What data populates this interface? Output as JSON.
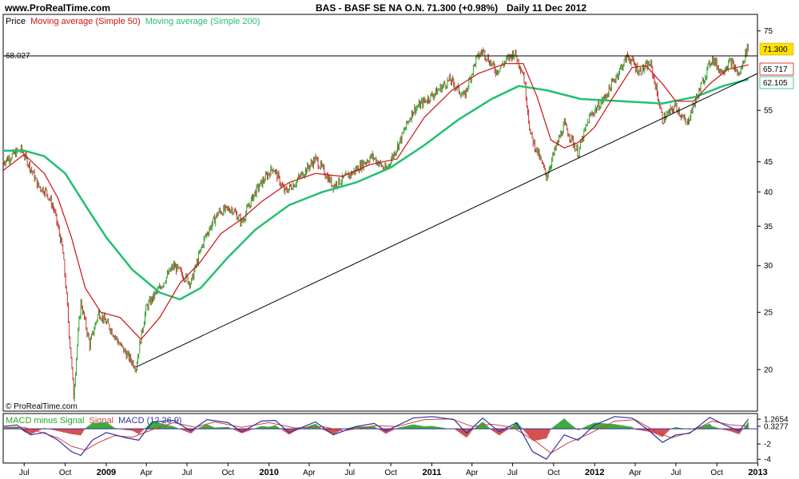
{
  "header": {
    "site": "www.ProRealTime.com",
    "title": "BAS - BASF SE NA O.N.",
    "quote": "71.300 (+0.98%)",
    "period": "Daily  11 Dec 2012"
  },
  "legend": {
    "price": "Price",
    "ma50": "Moving average (Simple 50)",
    "ma200": "Moving average (Simple 200)",
    "macd_hist": "MACD minus Signal",
    "macd_signal": "Signal",
    "macd_line": "MACD (12 26 9)"
  },
  "copyright": "© ProRealTime.com",
  "colors": {
    "price_up": "#2aa32a",
    "price_down": "#c83232",
    "ma50": "#cc1111",
    "ma200": "#22c070",
    "macd": "#3030a0",
    "signal": "#d04040",
    "hist_pos": "#2aa32a",
    "hist_neg": "#d04040",
    "last_price_bg": "#ffe000",
    "trendline": "#000000"
  },
  "chart_data": {
    "type": "line",
    "title": "BAS - BASF SE NA O.N.",
    "y_scale": "log",
    "ylim": [
      17,
      80
    ],
    "y_ticks": [
      75,
      55,
      45,
      40,
      35,
      30,
      25,
      20
    ],
    "x_range": [
      "2008-05-15",
      "2012-12-31"
    ],
    "x_ticks": [
      {
        "label": "Jul",
        "date": "2008-07-01",
        "year": false
      },
      {
        "label": "Oct",
        "date": "2008-10-01",
        "year": false
      },
      {
        "label": "2009",
        "date": "2009-01-01",
        "year": true
      },
      {
        "label": "Apr",
        "date": "2009-04-01",
        "year": false
      },
      {
        "label": "Jul",
        "date": "2009-07-01",
        "year": false
      },
      {
        "label": "Oct",
        "date": "2009-10-01",
        "year": false
      },
      {
        "label": "2010",
        "date": "2010-01-01",
        "year": true
      },
      {
        "label": "Apr",
        "date": "2010-04-01",
        "year": false
      },
      {
        "label": "Jul",
        "date": "2010-07-01",
        "year": false
      },
      {
        "label": "Oct",
        "date": "2010-10-01",
        "year": false
      },
      {
        "label": "2011",
        "date": "2011-01-01",
        "year": true
      },
      {
        "label": "Apr",
        "date": "2011-04-01",
        "year": false
      },
      {
        "label": "Jul",
        "date": "2011-07-01",
        "year": false
      },
      {
        "label": "Oct",
        "date": "2011-10-01",
        "year": false
      },
      {
        "label": "2012",
        "date": "2012-01-01",
        "year": true
      },
      {
        "label": "Apr",
        "date": "2012-04-01",
        "year": false
      },
      {
        "label": "Jul",
        "date": "2012-07-01",
        "year": false
      },
      {
        "label": "Oct",
        "date": "2012-10-01",
        "year": false
      },
      {
        "label": "2013",
        "date": "2013-01-01",
        "year": true
      }
    ],
    "horizontal_line": {
      "value": 68.027,
      "label": "68.027"
    },
    "last_values": {
      "price": "71.300",
      "ma50": "65.717",
      "ma200": "62.105"
    },
    "trendline": {
      "start": {
        "date": "2009-03-09",
        "value": 20.2
      },
      "end": {
        "date": "2012-12-31",
        "value": 63.5
      }
    },
    "price_series": [
      {
        "date": "2008-05-15",
        "value": 45.0
      },
      {
        "date": "2008-06-10",
        "value": 46.5
      },
      {
        "date": "2008-06-25",
        "value": 47.2
      },
      {
        "date": "2008-07-15",
        "value": 44.0
      },
      {
        "date": "2008-08-01",
        "value": 41.0
      },
      {
        "date": "2008-08-20",
        "value": 40.0
      },
      {
        "date": "2008-09-05",
        "value": 37.5
      },
      {
        "date": "2008-09-25",
        "value": 32.0
      },
      {
        "date": "2008-10-10",
        "value": 23.0
      },
      {
        "date": "2008-10-20",
        "value": 18.0
      },
      {
        "date": "2008-11-05",
        "value": 26.0
      },
      {
        "date": "2008-11-25",
        "value": 22.0
      },
      {
        "date": "2008-12-15",
        "value": 25.0
      },
      {
        "date": "2009-01-10",
        "value": 23.5
      },
      {
        "date": "2009-02-01",
        "value": 22.0
      },
      {
        "date": "2009-02-20",
        "value": 21.0
      },
      {
        "date": "2009-03-09",
        "value": 20.2
      },
      {
        "date": "2009-04-01",
        "value": 25.5
      },
      {
        "date": "2009-05-01",
        "value": 27.5
      },
      {
        "date": "2009-06-01",
        "value": 30.0
      },
      {
        "date": "2009-07-10",
        "value": 28.0
      },
      {
        "date": "2009-08-10",
        "value": 33.5
      },
      {
        "date": "2009-09-10",
        "value": 37.0
      },
      {
        "date": "2009-10-10",
        "value": 37.5
      },
      {
        "date": "2009-11-01",
        "value": 35.5
      },
      {
        "date": "2009-12-01",
        "value": 40.0
      },
      {
        "date": "2010-01-10",
        "value": 44.0
      },
      {
        "date": "2010-02-05",
        "value": 40.0
      },
      {
        "date": "2010-03-01",
        "value": 41.5
      },
      {
        "date": "2010-04-15",
        "value": 45.5
      },
      {
        "date": "2010-05-25",
        "value": 41.0
      },
      {
        "date": "2010-07-05",
        "value": 43.0
      },
      {
        "date": "2010-08-20",
        "value": 46.0
      },
      {
        "date": "2010-09-20",
        "value": 43.5
      },
      {
        "date": "2010-10-20",
        "value": 48.5
      },
      {
        "date": "2010-11-20",
        "value": 55.0
      },
      {
        "date": "2011-01-10",
        "value": 59.0
      },
      {
        "date": "2011-02-10",
        "value": 62.0
      },
      {
        "date": "2011-03-15",
        "value": 58.0
      },
      {
        "date": "2011-04-10",
        "value": 67.0
      },
      {
        "date": "2011-04-25",
        "value": 69.5
      },
      {
        "date": "2011-05-25",
        "value": 64.0
      },
      {
        "date": "2011-07-05",
        "value": 69.0
      },
      {
        "date": "2011-07-25",
        "value": 63.5
      },
      {
        "date": "2011-08-10",
        "value": 50.0
      },
      {
        "date": "2011-09-15",
        "value": 42.5
      },
      {
        "date": "2011-10-25",
        "value": 52.0
      },
      {
        "date": "2011-11-25",
        "value": 46.5
      },
      {
        "date": "2011-12-20",
        "value": 53.5
      },
      {
        "date": "2012-01-25",
        "value": 58.0
      },
      {
        "date": "2012-03-15",
        "value": 68.0
      },
      {
        "date": "2012-04-10",
        "value": 64.0
      },
      {
        "date": "2012-05-05",
        "value": 66.0
      },
      {
        "date": "2012-06-01",
        "value": 53.0
      },
      {
        "date": "2012-07-01",
        "value": 56.0
      },
      {
        "date": "2012-07-25",
        "value": 52.0
      },
      {
        "date": "2012-08-25",
        "value": 60.0
      },
      {
        "date": "2012-09-20",
        "value": 67.5
      },
      {
        "date": "2012-10-10",
        "value": 64.0
      },
      {
        "date": "2012-11-01",
        "value": 66.5
      },
      {
        "date": "2012-11-20",
        "value": 63.0
      },
      {
        "date": "2012-12-11",
        "value": 71.3
      }
    ],
    "ma50_series": [
      {
        "date": "2008-05-15",
        "value": 43.5
      },
      {
        "date": "2008-07-01",
        "value": 46.3
      },
      {
        "date": "2008-08-15",
        "value": 43.0
      },
      {
        "date": "2008-09-15",
        "value": 39.0
      },
      {
        "date": "2008-10-15",
        "value": 33.5
      },
      {
        "date": "2008-11-15",
        "value": 27.5
      },
      {
        "date": "2008-12-20",
        "value": 25.0
      },
      {
        "date": "2009-02-01",
        "value": 24.5
      },
      {
        "date": "2009-03-20",
        "value": 22.5
      },
      {
        "date": "2009-05-01",
        "value": 24.5
      },
      {
        "date": "2009-06-15",
        "value": 28.0
      },
      {
        "date": "2009-08-01",
        "value": 30.5
      },
      {
        "date": "2009-09-15",
        "value": 34.0
      },
      {
        "date": "2009-11-01",
        "value": 36.0
      },
      {
        "date": "2009-12-15",
        "value": 38.5
      },
      {
        "date": "2010-02-15",
        "value": 41.5
      },
      {
        "date": "2010-04-15",
        "value": 43.0
      },
      {
        "date": "2010-06-15",
        "value": 42.5
      },
      {
        "date": "2010-08-15",
        "value": 44.5
      },
      {
        "date": "2010-10-15",
        "value": 45.5
      },
      {
        "date": "2010-12-15",
        "value": 53.5
      },
      {
        "date": "2011-02-15",
        "value": 59.5
      },
      {
        "date": "2011-04-15",
        "value": 63.5
      },
      {
        "date": "2011-06-15",
        "value": 66.0
      },
      {
        "date": "2011-07-25",
        "value": 66.0
      },
      {
        "date": "2011-08-25",
        "value": 58.0
      },
      {
        "date": "2011-09-25",
        "value": 49.0
      },
      {
        "date": "2011-10-25",
        "value": 47.5
      },
      {
        "date": "2011-11-25",
        "value": 48.5
      },
      {
        "date": "2012-01-01",
        "value": 51.5
      },
      {
        "date": "2012-02-15",
        "value": 58.5
      },
      {
        "date": "2012-03-25",
        "value": 65.0
      },
      {
        "date": "2012-04-25",
        "value": 65.5
      },
      {
        "date": "2012-06-01",
        "value": 61.0
      },
      {
        "date": "2012-07-01",
        "value": 57.0
      },
      {
        "date": "2012-08-10",
        "value": 57.0
      },
      {
        "date": "2012-09-15",
        "value": 61.0
      },
      {
        "date": "2012-10-25",
        "value": 64.5
      },
      {
        "date": "2012-12-11",
        "value": 65.7
      }
    ],
    "ma200_series": [
      {
        "date": "2008-05-15",
        "value": 47.0
      },
      {
        "date": "2008-07-01",
        "value": 47.0
      },
      {
        "date": "2008-08-15",
        "value": 46.0
      },
      {
        "date": "2008-10-01",
        "value": 43.0
      },
      {
        "date": "2008-11-15",
        "value": 38.0
      },
      {
        "date": "2009-01-01",
        "value": 33.5
      },
      {
        "date": "2009-03-01",
        "value": 29.5
      },
      {
        "date": "2009-05-01",
        "value": 27.0
      },
      {
        "date": "2009-06-15",
        "value": 26.3
      },
      {
        "date": "2009-08-01",
        "value": 27.5
      },
      {
        "date": "2009-10-01",
        "value": 31.0
      },
      {
        "date": "2009-12-01",
        "value": 34.5
      },
      {
        "date": "2010-02-15",
        "value": 38.0
      },
      {
        "date": "2010-05-01",
        "value": 40.0
      },
      {
        "date": "2010-07-15",
        "value": 41.5
      },
      {
        "date": "2010-10-01",
        "value": 44.0
      },
      {
        "date": "2010-12-15",
        "value": 48.0
      },
      {
        "date": "2011-03-01",
        "value": 53.0
      },
      {
        "date": "2011-05-15",
        "value": 57.5
      },
      {
        "date": "2011-07-15",
        "value": 60.5
      },
      {
        "date": "2011-09-15",
        "value": 59.5
      },
      {
        "date": "2011-12-01",
        "value": 57.5
      },
      {
        "date": "2012-03-01",
        "value": 57.0
      },
      {
        "date": "2012-06-01",
        "value": 56.5
      },
      {
        "date": "2012-08-15",
        "value": 58.0
      },
      {
        "date": "2012-10-15",
        "value": 60.5
      },
      {
        "date": "2012-12-11",
        "value": 62.1
      }
    ],
    "macd_panel": {
      "ylim": [
        -4.5,
        2
      ],
      "y_ticks": [
        -2,
        -4
      ],
      "y_labels": [
        {
          "label": "1.2654",
          "value": 1.2654,
          "color": "#3030a0"
        },
        {
          "label": "0.3277",
          "value": 0.3277,
          "color": "#3030a0"
        },
        {
          "label": "-2",
          "value": -2,
          "color": "#000000"
        },
        {
          "label": "-4",
          "value": -4,
          "color": "#000000"
        }
      ],
      "macd": [
        {
          "date": "2008-05-15",
          "value": 0.3
        },
        {
          "date": "2008-06-15",
          "value": 0.5
        },
        {
          "date": "2008-07-15",
          "value": -0.8
        },
        {
          "date": "2008-08-15",
          "value": -0.5
        },
        {
          "date": "2008-09-15",
          "value": -1.5
        },
        {
          "date": "2008-10-15",
          "value": -3.0
        },
        {
          "date": "2008-11-05",
          "value": -3.5
        },
        {
          "date": "2008-12-01",
          "value": -1.5
        },
        {
          "date": "2009-01-01",
          "value": -0.5
        },
        {
          "date": "2009-02-15",
          "value": -1.2
        },
        {
          "date": "2009-03-15",
          "value": -1.5
        },
        {
          "date": "2009-04-15",
          "value": 0.9
        },
        {
          "date": "2009-06-01",
          "value": 1.1
        },
        {
          "date": "2009-07-10",
          "value": -0.3
        },
        {
          "date": "2009-08-15",
          "value": 1.2
        },
        {
          "date": "2009-10-01",
          "value": 0.8
        },
        {
          "date": "2009-11-01",
          "value": -0.4
        },
        {
          "date": "2009-12-15",
          "value": 1.0
        },
        {
          "date": "2010-01-15",
          "value": 1.1
        },
        {
          "date": "2010-02-15",
          "value": -0.5
        },
        {
          "date": "2010-04-15",
          "value": 0.9
        },
        {
          "date": "2010-05-25",
          "value": -0.8
        },
        {
          "date": "2010-07-15",
          "value": 0.3
        },
        {
          "date": "2010-08-25",
          "value": 0.7
        },
        {
          "date": "2010-09-20",
          "value": -0.3
        },
        {
          "date": "2010-11-20",
          "value": 1.4
        },
        {
          "date": "2011-01-01",
          "value": 1.6
        },
        {
          "date": "2011-02-20",
          "value": 1.2
        },
        {
          "date": "2011-03-20",
          "value": -0.6
        },
        {
          "date": "2011-04-25",
          "value": 1.4
        },
        {
          "date": "2011-06-01",
          "value": -0.4
        },
        {
          "date": "2011-07-10",
          "value": 0.8
        },
        {
          "date": "2011-08-15",
          "value": -3.0
        },
        {
          "date": "2011-09-15",
          "value": -4.0
        },
        {
          "date": "2011-10-25",
          "value": -0.8
        },
        {
          "date": "2011-11-25",
          "value": -1.5
        },
        {
          "date": "2012-01-01",
          "value": 0.5
        },
        {
          "date": "2012-02-15",
          "value": 1.6
        },
        {
          "date": "2012-03-25",
          "value": 1.4
        },
        {
          "date": "2012-05-01",
          "value": -0.2
        },
        {
          "date": "2012-06-01",
          "value": -1.8
        },
        {
          "date": "2012-07-01",
          "value": -0.8
        },
        {
          "date": "2012-08-01",
          "value": -0.6
        },
        {
          "date": "2012-09-15",
          "value": 1.5
        },
        {
          "date": "2012-10-15",
          "value": 0.6
        },
        {
          "date": "2012-11-20",
          "value": -0.3
        },
        {
          "date": "2012-12-11",
          "value": 1.27
        }
      ],
      "signal": [
        {
          "date": "2008-05-15",
          "value": 0.2
        },
        {
          "date": "2008-07-01",
          "value": 0.2
        },
        {
          "date": "2008-08-15",
          "value": -0.6
        },
        {
          "date": "2008-09-15",
          "value": -1.2
        },
        {
          "date": "2008-10-15",
          "value": -2.3
        },
        {
          "date": "2008-11-15",
          "value": -2.8
        },
        {
          "date": "2008-12-15",
          "value": -1.8
        },
        {
          "date": "2009-01-20",
          "value": -0.9
        },
        {
          "date": "2009-03-01",
          "value": -1.1
        },
        {
          "date": "2009-04-15",
          "value": -0.1
        },
        {
          "date": "2009-06-01",
          "value": 0.8
        },
        {
          "date": "2009-07-20",
          "value": 0.2
        },
        {
          "date": "2009-09-01",
          "value": 0.9
        },
        {
          "date": "2009-11-01",
          "value": 0.2
        },
        {
          "date": "2010-01-01",
          "value": 0.8
        },
        {
          "date": "2010-03-01",
          "value": 0.1
        },
        {
          "date": "2010-05-01",
          "value": 0.3
        },
        {
          "date": "2010-06-15",
          "value": -0.3
        },
        {
          "date": "2010-08-25",
          "value": 0.4
        },
        {
          "date": "2010-10-15",
          "value": 0.3
        },
        {
          "date": "2010-12-15",
          "value": 1.2
        },
        {
          "date": "2011-02-15",
          "value": 1.3
        },
        {
          "date": "2011-04-01",
          "value": 0.3
        },
        {
          "date": "2011-05-15",
          "value": 0.6
        },
        {
          "date": "2011-07-01",
          "value": 0.2
        },
        {
          "date": "2011-08-25",
          "value": -1.8
        },
        {
          "date": "2011-09-25",
          "value": -3.2
        },
        {
          "date": "2011-11-01",
          "value": -1.9
        },
        {
          "date": "2011-12-15",
          "value": -0.8
        },
        {
          "date": "2012-02-15",
          "value": 1.0
        },
        {
          "date": "2012-04-01",
          "value": 1.2
        },
        {
          "date": "2012-05-15",
          "value": -0.3
        },
        {
          "date": "2012-06-20",
          "value": -1.2
        },
        {
          "date": "2012-08-01",
          "value": -0.5
        },
        {
          "date": "2012-09-20",
          "value": 1.0
        },
        {
          "date": "2012-11-01",
          "value": 0.5
        },
        {
          "date": "2012-12-11",
          "value": 0.33
        }
      ]
    }
  }
}
